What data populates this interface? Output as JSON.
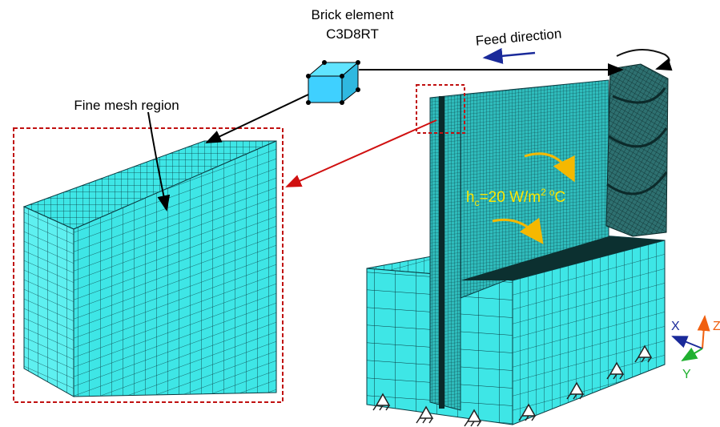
{
  "labels": {
    "brick_element": "Brick element",
    "element_type": "C3D8RT",
    "feed_direction": "Feed direction",
    "fine_mesh_region": "Fine mesh region",
    "heat_transfer": [
      "h",
      "c",
      "=20 W/m",
      "2",
      "o",
      "C"
    ],
    "axes": {
      "x": "X",
      "y": "Y",
      "z": "Z"
    }
  }
}
